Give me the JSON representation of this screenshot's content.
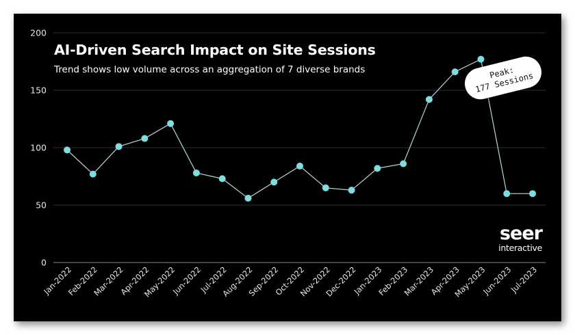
{
  "chart_data": {
    "type": "line",
    "title": "AI-Driven Search Impact on Site Sessions",
    "subtitle": "Trend shows low volume across an aggregation of 7 diverse brands",
    "xlabel": "",
    "ylabel": "",
    "categories": [
      "Jan-2022",
      "Feb-2022",
      "Mar-2022",
      "Apr-2022",
      "May-2022",
      "Jun-2022",
      "Jul-2022",
      "Aug-2022",
      "Sep-2022",
      "Oct-2022",
      "Nov-2022",
      "Dec-2022",
      "Jan-2023",
      "Feb-2023",
      "Mar-2023",
      "Apr-2023",
      "May-2023",
      "Jun-2023",
      "Jul-2023"
    ],
    "series": [
      {
        "name": "Site Sessions",
        "values": [
          98,
          77,
          101,
          108,
          121,
          78,
          73,
          56,
          70,
          84,
          65,
          63,
          82,
          86,
          142,
          166,
          177,
          60,
          60
        ]
      }
    ],
    "ylim": [
      0,
      200
    ],
    "yticks": [
      0,
      50,
      100,
      150,
      200
    ],
    "grid": true,
    "legend": "none",
    "annotations": [
      {
        "text": "Peak:\n177 Sessions",
        "x": "May-2023",
        "y": 177
      }
    ]
  },
  "header": {
    "title": "AI-Driven Search Impact on Site Sessions",
    "subtitle": "Trend shows low volume across an aggregation of 7 diverse brands"
  },
  "callout": {
    "line1": "Peak:",
    "line2": "177 Sessions"
  },
  "logo": {
    "main": "seer",
    "sub": "interactive"
  },
  "colors": {
    "background": "#000000",
    "marker": "#7fdde0",
    "line": "#b8d8da",
    "grid": "#2e2e2e",
    "axis": "#8a8a8a",
    "text": "#ffffff"
  }
}
